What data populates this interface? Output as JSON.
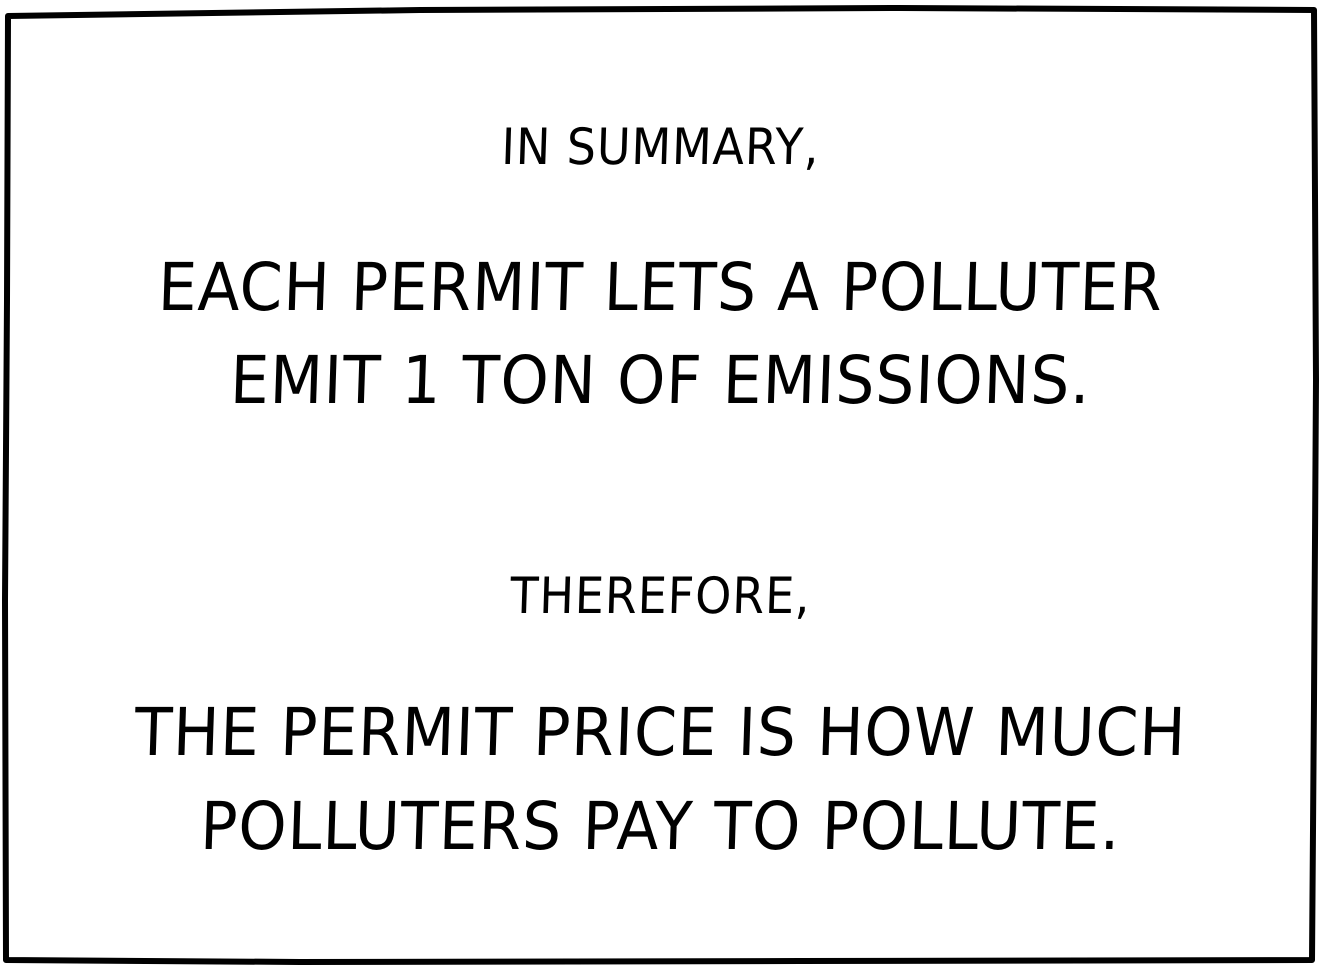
{
  "panel": {
    "intro": "IN SUMMARY,",
    "statement_line1": "EACH PERMIT LETS A POLLUTER",
    "statement_line2": "EMIT 1 TON OF EMISSIONS.",
    "connector": "THEREFORE,",
    "conclusion_line1": "THE PERMIT PRICE IS HOW MUCH",
    "conclusion_line2": "POLLUTERS PAY TO POLLUTE."
  },
  "colors": {
    "ink": "#000000",
    "paper": "#ffffff"
  }
}
